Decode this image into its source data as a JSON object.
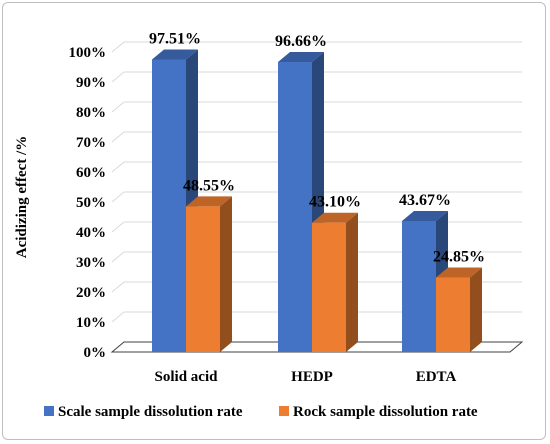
{
  "chart_data": {
    "type": "bar",
    "style": "3d-clustered-column",
    "categories": [
      "Solid acid",
      "HEDP",
      "EDTA"
    ],
    "series": [
      {
        "name": "Scale sample dissolution rate",
        "color": "#4472c4",
        "values": [
          97.51,
          96.66,
          43.67
        ],
        "labels": [
          "97.51%",
          "96.66%",
          "43.67%"
        ]
      },
      {
        "name": "Rock sample dissolution rate",
        "color": "#ed7d31",
        "values": [
          48.55,
          43.1,
          24.85
        ],
        "labels": [
          "48.55%",
          "43.10%",
          "24.85%"
        ]
      }
    ],
    "ylabel": "Acidizing effect /%",
    "xlabel": "",
    "ylim": [
      0,
      100
    ],
    "yticks": [
      0,
      10,
      20,
      30,
      40,
      50,
      60,
      70,
      80,
      90,
      100
    ],
    "ytick_labels": [
      "0%",
      "10%",
      "20%",
      "30%",
      "40%",
      "50%",
      "60%",
      "70%",
      "80%",
      "90%",
      "100%"
    ],
    "grid": true,
    "legend_position": "bottom"
  }
}
